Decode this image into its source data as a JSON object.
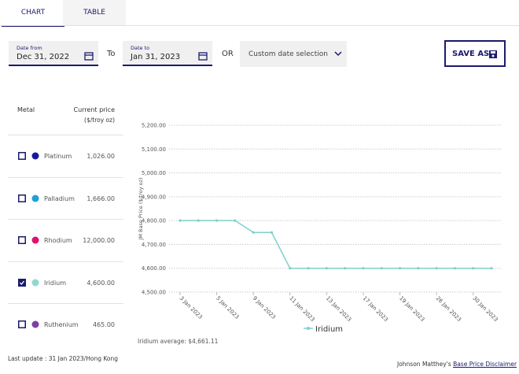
{
  "tabs": [
    "CHART",
    "TABLE"
  ],
  "filters": {
    "date_from_label": "Date from",
    "date_from": "Dec 31, 2022",
    "to": "To",
    "date_to_label": "Date to",
    "date_to": "Jan 31, 2023",
    "or": "OR",
    "custom": "Custom date selection",
    "save": "SAVE AS"
  },
  "table": {
    "header": [
      "Metal",
      "Current price",
      "($/troy oz)"
    ],
    "rows": [
      {
        "name": "Platinum",
        "price": "1,026.00",
        "color": "#1a1a9c",
        "checked": false
      },
      {
        "name": "Palladium",
        "price": "1,666.00",
        "color": "#1fa0d8",
        "checked": false
      },
      {
        "name": "Rhodium",
        "price": "12,000.00",
        "color": "#e0106e",
        "checked": false
      },
      {
        "name": "Iridium",
        "price": "4,600.00",
        "color": "#8ed8d2",
        "checked": true
      },
      {
        "name": "Ruthenium",
        "price": "465.00",
        "color": "#7d3fa6",
        "checked": false
      }
    ]
  },
  "last_update": "Last update : 31 Jan 2023/Hong Kong",
  "average": "Iridium average: $4,661.11",
  "disclaimer_prefix": "Johnson Matthey's",
  "disclaimer_link": "Base Price Disclaimer",
  "chart_data": {
    "type": "line",
    "y_label": "JM Base Price ($/troy oz)",
    "categories": [
      "3 Jan 2023",
      null,
      "5 Jan 2023",
      null,
      "9 Jan 2023",
      null,
      "11 Jan 2023",
      null,
      "13 Jan 2023",
      null,
      "17 Jan 2023",
      null,
      "19 Jan 2023",
      null,
      "26 Jan 2023",
      null,
      "30 Jan 2023",
      null
    ],
    "series": [
      {
        "name": "Iridium",
        "color": "#7fd0ca",
        "values": [
          4800,
          4800,
          4800,
          4800,
          4750,
          4750,
          4600,
          4600,
          4600,
          4600,
          4600,
          4600,
          4600,
          4600,
          4600,
          4600,
          4600,
          4600
        ]
      }
    ],
    "ylim": [
      4500,
      5200
    ],
    "yticks": [
      {
        "value": 4500,
        "label": "4,500.00"
      },
      {
        "value": 4600,
        "label": "4,600.00"
      },
      {
        "value": 4700,
        "label": "4,700.00"
      },
      {
        "value": 4800,
        "label": "4,800.00"
      },
      {
        "value": 4900,
        "label": "4,900.00"
      },
      {
        "value": 5000,
        "label": "5,000.00"
      },
      {
        "value": 5100,
        "label": "5,100.00"
      },
      {
        "value": 5200,
        "label": "5,200.00"
      }
    ],
    "grid": true
  }
}
